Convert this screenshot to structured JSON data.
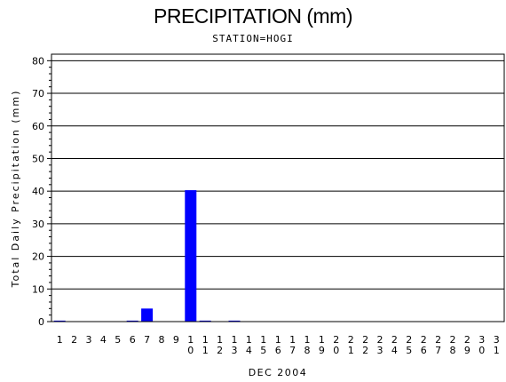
{
  "title": "PRECIPITATION (mm)",
  "subtitle": "STATION=HOGI",
  "chart_data": {
    "type": "bar",
    "title": "PRECIPITATION (mm)",
    "subtitle": "STATION=HOGI",
    "xlabel": "DEC 2004",
    "ylabel": "Total Daily Precipitation (mm)",
    "ylim": [
      0,
      82
    ],
    "yticks": [
      0,
      10,
      20,
      30,
      40,
      50,
      60,
      70,
      80
    ],
    "grid": true,
    "bar_color": "#0000ff",
    "categories": [
      "1",
      "2",
      "3",
      "4",
      "5",
      "6",
      "7",
      "8",
      "9",
      "10",
      "11",
      "12",
      "13",
      "14",
      "15",
      "16",
      "17",
      "18",
      "19",
      "20",
      "21",
      "22",
      "23",
      "24",
      "25",
      "26",
      "27",
      "28",
      "29",
      "30",
      "31"
    ],
    "values": [
      0.3,
      0,
      0,
      0,
      0,
      0.3,
      4.0,
      0,
      0,
      40.3,
      0.3,
      0,
      0.3,
      0,
      0,
      0,
      0,
      0,
      0,
      0,
      0,
      0,
      0,
      0,
      0,
      0,
      0,
      0,
      0,
      0,
      0
    ]
  }
}
